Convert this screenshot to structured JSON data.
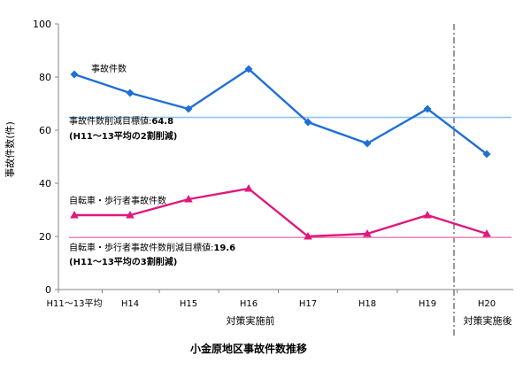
{
  "chart_data": {
    "type": "line",
    "title": "小金原地区事故件数推移",
    "ylabel": "事故件数(件)",
    "ylim": [
      0,
      100
    ],
    "yticks": [
      0,
      20,
      40,
      60,
      80,
      100
    ],
    "categories": [
      "H11～13平均",
      "H14",
      "H15",
      "H16",
      "H17",
      "H18",
      "H19",
      "H20"
    ],
    "period_labels": {
      "before": "対策実施前",
      "after": "対策実施後"
    },
    "series": [
      {
        "name": "事故件数",
        "color": "#1f6fd6",
        "marker": "diamond",
        "values": [
          81,
          74,
          68,
          83,
          63,
          55,
          68,
          51
        ]
      },
      {
        "name": "自転車・歩行者事故件数",
        "color": "#e0177d",
        "marker": "triangle",
        "values": [
          28,
          28,
          34,
          38,
          20,
          21,
          28,
          21
        ]
      }
    ],
    "targets": [
      {
        "value": 64.8,
        "color": "#8fc3f0",
        "label_line1": "事故件数削減目標値:",
        "label_value": "64.8",
        "label_line2": "(H11～13平均の2割削減)"
      },
      {
        "value": 19.6,
        "color": "#f08cb8",
        "label_line1": "自転車・歩行者事故件数削減目標値:",
        "label_value": "19.6",
        "label_line2": "(H11～13平均の3割削減)"
      }
    ]
  }
}
